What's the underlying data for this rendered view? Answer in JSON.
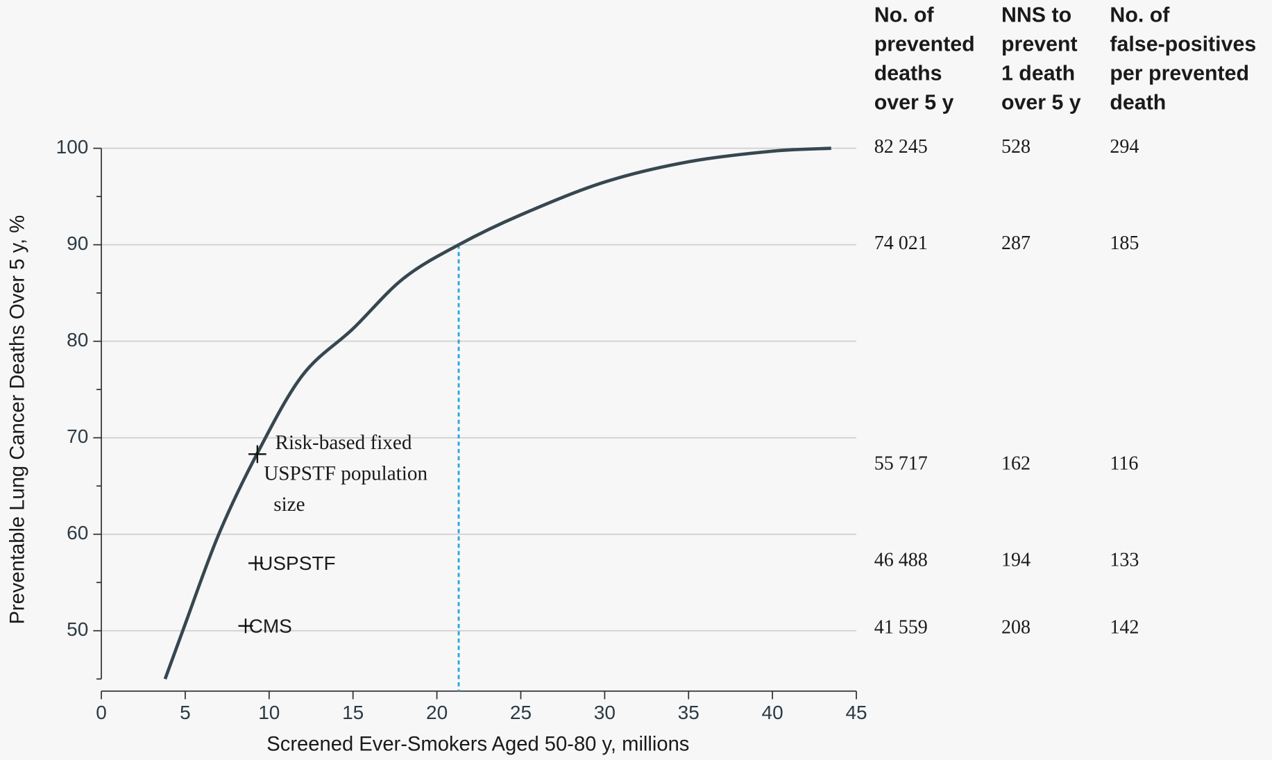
{
  "chart_data": {
    "type": "line",
    "xlabel": "Screened Ever-Smokers Aged 50-80 y, millions",
    "ylabel": "Preventable Lung Cancer Deaths Over 5 y, %",
    "x": [
      3.8,
      5,
      7,
      9.3,
      12,
      15,
      18,
      21.3,
      25,
      30,
      35,
      40,
      43.5
    ],
    "values": [
      45,
      50.7,
      60,
      68.4,
      76.5,
      81.3,
      86.5,
      90,
      93.1,
      96.5,
      98.6,
      99.7,
      100
    ],
    "color": "#37474f",
    "xlim": [
      0,
      45
    ],
    "ylim": [
      45,
      100
    ],
    "xticks": [
      0,
      5,
      10,
      15,
      20,
      25,
      30,
      35,
      40,
      45
    ],
    "yticks": [
      50,
      60,
      70,
      80,
      90,
      100
    ],
    "y_minor_ticks": [
      45,
      55,
      65,
      75,
      85,
      95
    ],
    "grid": true,
    "points": [
      {
        "label": [
          "Risk-based fixed",
          "USPSTF population",
          "size"
        ],
        "x": 9.3,
        "y": 68.3
      },
      {
        "label": [
          "USPSTF"
        ],
        "x": 9.2,
        "y": 57
      },
      {
        "label": [
          "CMS"
        ],
        "x": 8.6,
        "y": 50.5
      }
    ],
    "reference_line": {
      "x": 21.3,
      "y": 90,
      "color": "#29a8e0"
    }
  },
  "table": {
    "headers": [
      [
        "No. of",
        "prevented",
        "deaths",
        "over 5 y"
      ],
      [
        "NNS  to",
        "prevent",
        "1 death",
        "over 5 y"
      ],
      [
        "No. of",
        "false-positives",
        "per prevented",
        "death"
      ]
    ],
    "rows": [
      [
        "82 245",
        "528",
        "294"
      ],
      [
        "74 021",
        "287",
        "185"
      ],
      [
        "55 717",
        "162",
        "116"
      ],
      [
        "46 488",
        "194",
        "133"
      ],
      [
        "41 559",
        "208",
        "142"
      ]
    ]
  }
}
